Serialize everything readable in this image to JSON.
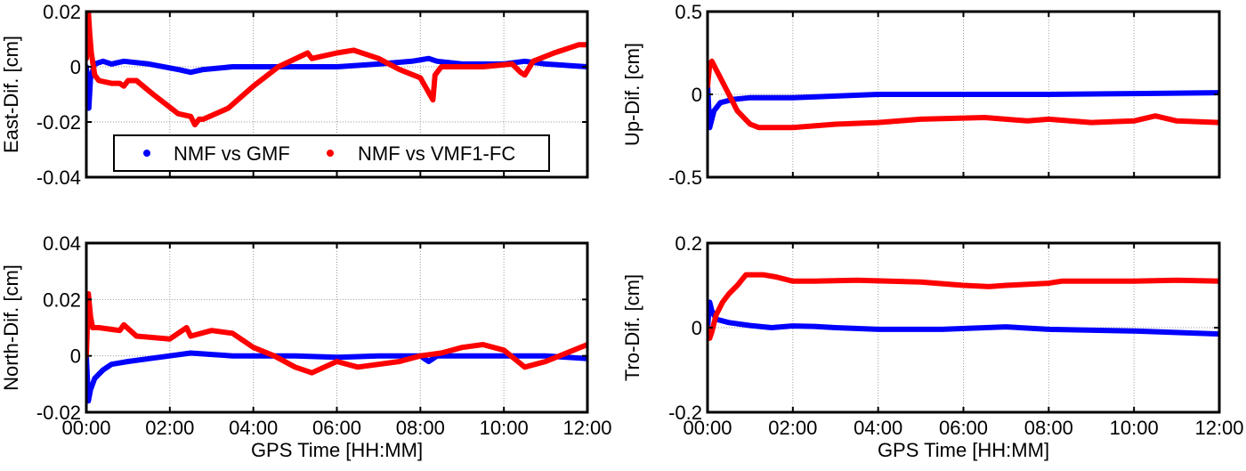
{
  "chart_data": [
    {
      "type": "line",
      "id": "east",
      "ylabel": "East-Dif. [cm]",
      "xlabel": "",
      "xlim": [
        0,
        12
      ],
      "ylim": [
        -0.04,
        0.02
      ],
      "yticks": [
        0.02,
        0,
        -0.02,
        -0.04
      ],
      "ytick_labels": [
        "0.02",
        "0",
        "-0.02",
        "-0.04"
      ],
      "xticks": [
        0,
        2,
        4,
        6,
        8,
        10,
        12
      ],
      "xtick_labels": [],
      "grid": true,
      "legend": {
        "placement": "bottom",
        "entries": [
          "NMF vs GMF",
          "NMF vs VMF1-FC"
        ]
      },
      "series": [
        {
          "name": "NMF vs GMF",
          "color": "#0000ff",
          "x": [
            0,
            0.03,
            0.06,
            0.1,
            0.2,
            0.4,
            0.6,
            0.9,
            1.5,
            2.2,
            2.5,
            2.8,
            3.5,
            4.5,
            6,
            7,
            7.8,
            8.2,
            8.4,
            9,
            10,
            10.5,
            11,
            12
          ],
          "y": [
            0,
            -0.006,
            -0.015,
            -0.004,
            0.001,
            0.002,
            0.001,
            0.002,
            0.001,
            -0.001,
            -0.002,
            -0.001,
            0,
            0,
            0,
            0.001,
            0.002,
            0.003,
            0.002,
            0.001,
            0.001,
            0.002,
            0.001,
            0
          ]
        },
        {
          "name": "NMF vs VMF1-FC",
          "color": "#ff0000",
          "x": [
            0,
            0.05,
            0.08,
            0.12,
            0.2,
            0.3,
            0.6,
            0.8,
            0.9,
            1.0,
            1.2,
            1.6,
            2.2,
            2.5,
            2.6,
            2.7,
            2.8,
            3.4,
            4.0,
            4.6,
            5.3,
            5.4,
            6.0,
            6.4,
            7.0,
            7.5,
            8.0,
            8.3,
            8.35,
            8.5,
            9.5,
            10.2,
            10.4,
            10.5,
            10.7,
            11.2,
            11.8,
            12
          ],
          "y": [
            0.003,
            0.02,
            0.012,
            0.005,
            -0.003,
            -0.005,
            -0.006,
            -0.006,
            -0.007,
            -0.005,
            -0.005,
            -0.01,
            -0.017,
            -0.018,
            -0.021,
            -0.019,
            -0.019,
            -0.015,
            -0.007,
            0,
            0.005,
            0.003,
            0.005,
            0.006,
            0.003,
            -0.001,
            -0.004,
            -0.012,
            -0.003,
            0,
            0,
            0.001,
            -0.002,
            -0.003,
            0.002,
            0.005,
            0.008,
            0.008
          ]
        }
      ]
    },
    {
      "type": "line",
      "id": "up",
      "ylabel": "Up-Dif. [cm]",
      "xlabel": "",
      "xlim": [
        0,
        12
      ],
      "ylim": [
        -0.5,
        0.5
      ],
      "yticks": [
        0.5,
        0,
        -0.5
      ],
      "ytick_labels": [
        "0.5",
        "0",
        "-0.5"
      ],
      "xticks": [
        0,
        2,
        4,
        6,
        8,
        10,
        12
      ],
      "xtick_labels": [],
      "grid": true,
      "series": [
        {
          "name": "NMF vs GMF",
          "color": "#0000ff",
          "x": [
            0,
            0.05,
            0.1,
            0.15,
            0.3,
            0.6,
            1,
            2,
            3,
            4,
            6,
            8,
            10,
            12
          ],
          "y": [
            0.06,
            -0.2,
            -0.15,
            -0.1,
            -0.05,
            -0.03,
            -0.02,
            -0.02,
            -0.01,
            0,
            0,
            0,
            0.005,
            0.01
          ]
        },
        {
          "name": "NMF vs VMF1-FC",
          "color": "#ff0000",
          "x": [
            0,
            0.05,
            0.1,
            0.2,
            0.3,
            0.5,
            0.7,
            1.0,
            1.2,
            2,
            3,
            4,
            5,
            6.5,
            7.5,
            8,
            8.5,
            9,
            10,
            10.5,
            11,
            12
          ],
          "y": [
            0.05,
            0.18,
            0.2,
            0.15,
            0.1,
            0,
            -0.1,
            -0.18,
            -0.2,
            -0.2,
            -0.18,
            -0.17,
            -0.15,
            -0.14,
            -0.16,
            -0.15,
            -0.16,
            -0.17,
            -0.16,
            -0.13,
            -0.16,
            -0.17
          ]
        }
      ]
    },
    {
      "type": "line",
      "id": "north",
      "ylabel": "North-Dif. [cm]",
      "xlabel": "GPS Time [HH:MM]",
      "xlim": [
        0,
        12
      ],
      "ylim": [
        -0.02,
        0.04
      ],
      "yticks": [
        0.04,
        0.02,
        0,
        -0.02
      ],
      "ytick_labels": [
        "0.04",
        "0.02",
        "0",
        "-0.02"
      ],
      "xticks": [
        0,
        2,
        4,
        6,
        8,
        10,
        12
      ],
      "xtick_labels": [
        "00:00",
        "02:00",
        "04:00",
        "06:00",
        "08:00",
        "10:00",
        "12:00"
      ],
      "grid": true,
      "series": [
        {
          "name": "NMF vs GMF",
          "color": "#0000ff",
          "x": [
            0,
            0.05,
            0.1,
            0.2,
            0.4,
            0.6,
            1,
            1.5,
            2,
            2.5,
            3,
            3.5,
            5,
            6,
            7,
            8,
            8.2,
            8.4,
            9,
            10,
            11,
            12
          ],
          "y": [
            0,
            -0.016,
            -0.012,
            -0.008,
            -0.005,
            -0.003,
            -0.002,
            -0.001,
            0,
            0.001,
            0.0005,
            0,
            0,
            -0.0005,
            0,
            0,
            -0.002,
            0,
            0,
            0,
            0,
            -0.001
          ]
        },
        {
          "name": "NMF vs VMF1-FC",
          "color": "#ff0000",
          "x": [
            0,
            0.05,
            0.1,
            0.15,
            0.3,
            0.8,
            0.9,
            1.2,
            2,
            2.4,
            2.5,
            3,
            3.5,
            4,
            4.5,
            5,
            5.4,
            6,
            6.5,
            7.5,
            8,
            8.5,
            9,
            9.5,
            10,
            10.5,
            11,
            12
          ],
          "y": [
            0,
            0.022,
            0.014,
            0.01,
            0.01,
            0.009,
            0.011,
            0.007,
            0.006,
            0.01,
            0.007,
            0.009,
            0.008,
            0.003,
            0,
            -0.004,
            -0.006,
            -0.002,
            -0.004,
            -0.002,
            0,
            0.001,
            0.003,
            0.004,
            0.002,
            -0.004,
            -0.002,
            0.004
          ]
        }
      ]
    },
    {
      "type": "line",
      "id": "tro",
      "ylabel": "Tro-Dif. [cm]",
      "xlabel": "GPS Time [HH:MM]",
      "xlim": [
        0,
        12
      ],
      "ylim": [
        -0.2,
        0.2
      ],
      "yticks": [
        0.2,
        0,
        -0.2
      ],
      "ytick_labels": [
        "0.2",
        "0",
        "-0.2"
      ],
      "xticks": [
        0,
        2,
        4,
        6,
        8,
        10,
        12
      ],
      "xtick_labels": [
        "00:00",
        "02:00",
        "04:00",
        "06:00",
        "08:00",
        "10:00",
        "12:00"
      ],
      "grid": true,
      "series": [
        {
          "name": "NMF vs GMF",
          "color": "#0000ff",
          "x": [
            0,
            0.05,
            0.1,
            0.2,
            0.5,
            1,
            1.5,
            2,
            2.5,
            3,
            4,
            5.5,
            7,
            8,
            10,
            12
          ],
          "y": [
            0,
            0.06,
            0.04,
            0.02,
            0.012,
            0.005,
            0,
            0.004,
            0.003,
            0,
            -0.004,
            -0.004,
            0.002,
            -0.004,
            -0.008,
            -0.015
          ]
        },
        {
          "name": "NMF vs VMF1-FC",
          "color": "#ff0000",
          "x": [
            0,
            0.05,
            0.1,
            0.2,
            0.35,
            0.5,
            0.7,
            0.9,
            1.3,
            1.6,
            2,
            2.5,
            3.5,
            5,
            6,
            6.6,
            7,
            8,
            8.3,
            9,
            10,
            11,
            12
          ],
          "y": [
            0,
            -0.025,
            -0.01,
            0.03,
            0.06,
            0.08,
            0.1,
            0.125,
            0.125,
            0.12,
            0.11,
            0.11,
            0.112,
            0.108,
            0.1,
            0.097,
            0.1,
            0.105,
            0.11,
            0.11,
            0.11,
            0.112,
            0.11
          ]
        }
      ]
    }
  ]
}
